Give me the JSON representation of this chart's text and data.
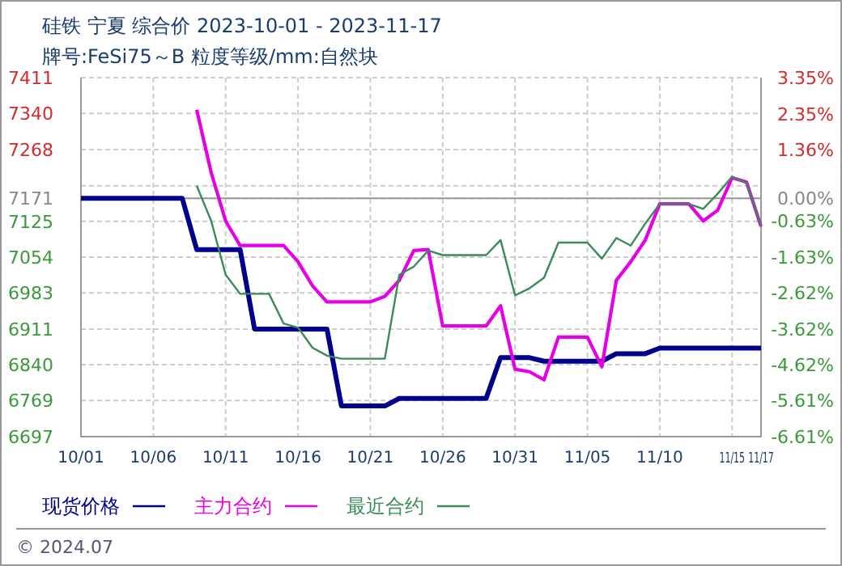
{
  "chart_data": {
    "type": "line",
    "title": "硅铁 宁夏 综合价 2023-10-01 - 2023-11-17",
    "subtitle": "牌号:FeSi75～B 粒度等级/mm:自然块",
    "xlim": [
      "2023-10-01",
      "2023-11-17"
    ],
    "xticks": [
      {
        "value": "2023-10-01",
        "label": "10/01"
      },
      {
        "value": "2023-10-06",
        "label": "10/06"
      },
      {
        "value": "2023-10-11",
        "label": "10/11"
      },
      {
        "value": "2023-10-16",
        "label": "10/16"
      },
      {
        "value": "2023-10-21",
        "label": "10/21"
      },
      {
        "value": "2023-10-26",
        "label": "10/26"
      },
      {
        "value": "2023-10-31",
        "label": "10/31"
      },
      {
        "value": "2023-11-05",
        "label": "11/05"
      },
      {
        "value": "2023-11-10",
        "label": "11/10"
      },
      {
        "value": "2023-11-15",
        "label": "11/15"
      },
      {
        "value": "2023-11-17",
        "label": "11/17"
      }
    ],
    "ylim": [
      6697,
      7411
    ],
    "yticks": [
      7411,
      7340,
      7268,
      {
        "value": 7196,
        "label": null
      },
      7171,
      7125,
      7054,
      6983,
      6911,
      6840,
      6769,
      6697
    ],
    "y2lim": [
      -6.61,
      3.35
    ],
    "y2ticks": [
      {
        "value": 3.35,
        "label": "3.35%"
      },
      {
        "value": 2.35,
        "label": "2.35%"
      },
      {
        "value": 1.36,
        "label": "1.36%"
      },
      {
        "value": 0,
        "label": "0.00%"
      },
      {
        "value": -0.63,
        "label": "-0.63%"
      },
      {
        "value": -1.63,
        "label": "-1.63%"
      },
      {
        "value": -2.62,
        "label": "-2.62%"
      },
      {
        "value": -3.62,
        "label": "-3.62%"
      },
      {
        "value": -4.62,
        "label": "-4.62%"
      },
      {
        "value": -5.61,
        "label": "-5.61%"
      },
      {
        "value": -6.61,
        "label": "-6.61%"
      }
    ],
    "ref_lines": [
      {
        "axis": "y",
        "value": 7171,
        "color": "#999999"
      }
    ],
    "grid": true,
    "legend": "bottom left",
    "marker": "none",
    "line_style": "solid",
    "annotations": [
      "© 2024.07"
    ],
    "series": [
      {
        "name": "现货价格",
        "color": "#00008b",
        "x": [
          "2023-10-01",
          "2023-10-08",
          "2023-10-09",
          "2023-10-12",
          "2023-10-13",
          "2023-10-18",
          "2023-10-19",
          "2023-10-22",
          "2023-10-23",
          "2023-10-29",
          "2023-10-30",
          "2023-11-01",
          "2023-11-02",
          "2023-11-06",
          "2023-11-07",
          "2023-11-09",
          "2023-11-10",
          "2023-11-17"
        ],
        "values": [
          7171,
          7171,
          7069,
          7069,
          6911,
          6911,
          6758,
          6758,
          6773,
          6773,
          6854,
          6854,
          6847,
          6847,
          6862,
          6862,
          6873,
          6873
        ]
      },
      {
        "name": "主力合约",
        "color": "#e600e6",
        "x": [
          "2023-10-09",
          "2023-10-10",
          "2023-10-11",
          "2023-10-12",
          "2023-10-13",
          "2023-10-14",
          "2023-10-15",
          "2023-10-16",
          "2023-10-17",
          "2023-10-18",
          "2023-10-19",
          "2023-10-20",
          "2023-10-21",
          "2023-10-22",
          "2023-10-23",
          "2023-10-24",
          "2023-10-25",
          "2023-10-26",
          "2023-10-27",
          "2023-10-28",
          "2023-10-29",
          "2023-10-30",
          "2023-10-31",
          "2023-11-01",
          "2023-11-02",
          "2023-11-03",
          "2023-11-04",
          "2023-11-05",
          "2023-11-06",
          "2023-11-07",
          "2023-11-08",
          "2023-11-09",
          "2023-11-10",
          "2023-11-11",
          "2023-11-12",
          "2023-11-13",
          "2023-11-14",
          "2023-11-15",
          "2023-11-16",
          "2023-11-17"
        ],
        "values": [
          7347,
          7222,
          7126,
          7077,
          7077,
          7077,
          7077,
          7045,
          6997,
          6965,
          6965,
          6965,
          6965,
          6976,
          7008,
          7067,
          7069,
          6917,
          6917,
          6917,
          6917,
          6957,
          6831,
          6826,
          6810,
          6895,
          6895,
          6895,
          6836,
          7008,
          7045,
          7088,
          7160,
          7160,
          7160,
          7126,
          7147,
          7212,
          7203,
          7115
        ]
      },
      {
        "name": "最近合约",
        "color": "#3a8a5a",
        "x": [
          "2023-10-09",
          "2023-10-10",
          "2023-10-11",
          "2023-10-12",
          "2023-10-13",
          "2023-10-14",
          "2023-10-15",
          "2023-10-16",
          "2023-10-17",
          "2023-10-18",
          "2023-10-19",
          "2023-10-20",
          "2023-10-21",
          "2023-10-22",
          "2023-10-23",
          "2023-10-24",
          "2023-10-25",
          "2023-10-26",
          "2023-10-27",
          "2023-10-28",
          "2023-10-29",
          "2023-10-30",
          "2023-10-31",
          "2023-11-01",
          "2023-11-02",
          "2023-11-03",
          "2023-11-04",
          "2023-11-05",
          "2023-11-06",
          "2023-11-07",
          "2023-11-08",
          "2023-11-09",
          "2023-11-10",
          "2023-11-11",
          "2023-11-12",
          "2023-11-13",
          "2023-11-14",
          "2023-11-15",
          "2023-11-16",
          "2023-11-17"
        ],
        "values": [
          7196,
          7126,
          7019,
          6981,
          6981,
          6981,
          6922,
          6914,
          6874,
          6858,
          6852,
          6852,
          6852,
          6852,
          7019,
          7035,
          7067,
          7058,
          7058,
          7058,
          7058,
          7088,
          6978,
          6992,
          7013,
          7083,
          7083,
          7083,
          7051,
          7092,
          7077,
          7121,
          7160,
          7160,
          7160,
          7150,
          7180,
          7214,
          7201,
          7117
        ]
      }
    ]
  }
}
